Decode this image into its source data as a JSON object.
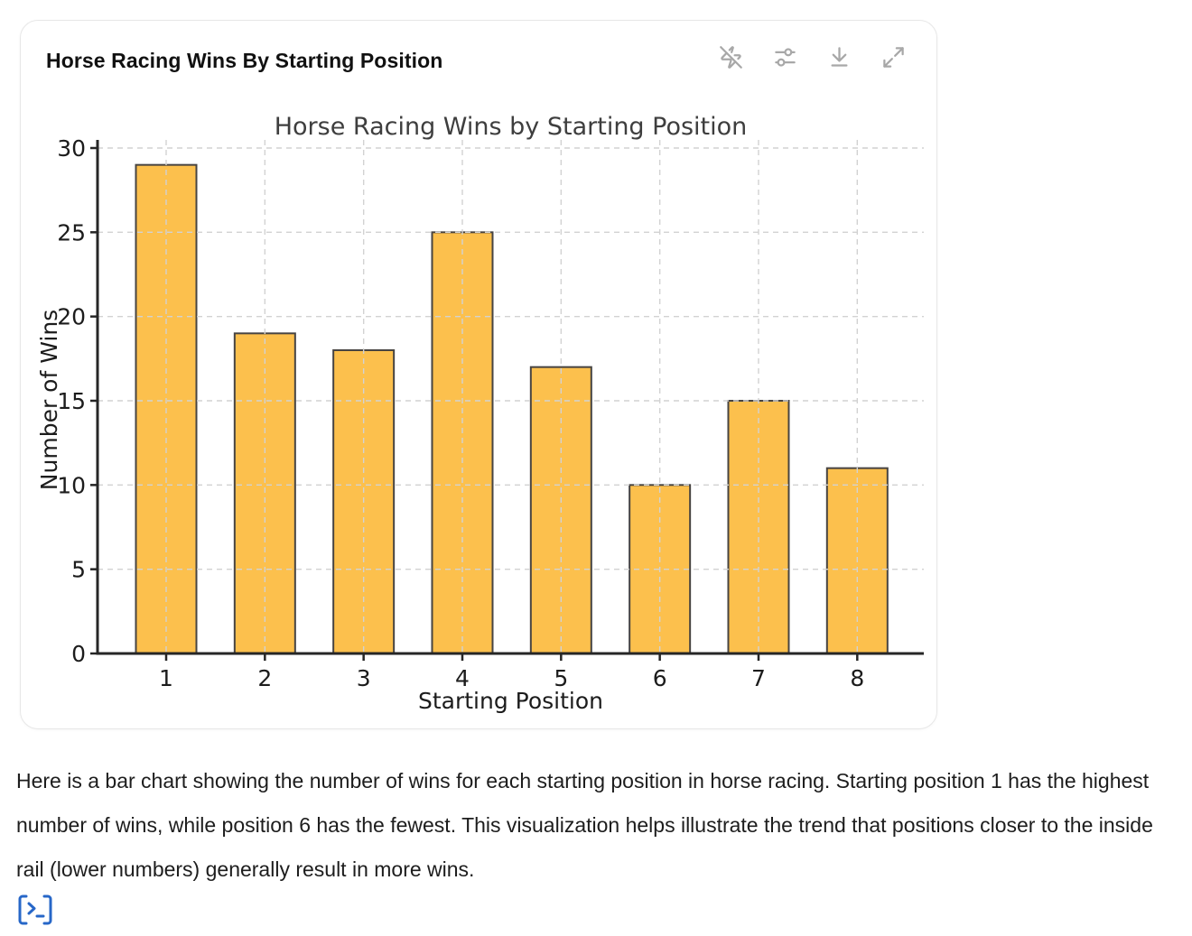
{
  "card": {
    "title": "Horse Racing Wins By Starting Position",
    "toolbar_icons": [
      "zap-off",
      "sliders",
      "download",
      "expand"
    ]
  },
  "chart_data": {
    "type": "bar",
    "title": "Horse Racing Wins by Starting Position",
    "xlabel": "Starting Position",
    "ylabel": "Number of Wins",
    "categories": [
      "1",
      "2",
      "3",
      "4",
      "5",
      "6",
      "7",
      "8"
    ],
    "values": [
      29,
      19,
      18,
      25,
      17,
      10,
      15,
      11
    ],
    "ylim": [
      0,
      30
    ],
    "yticks": [
      0,
      5,
      10,
      15,
      20,
      25,
      30
    ],
    "grid": true,
    "bar_color": "#FCC04D",
    "bar_edge_color": "#474442",
    "grid_color": "#d2d2d2",
    "axis_color": "#262626",
    "tick_label_color": "#1c1c1c",
    "title_color": "#3e3e3e"
  },
  "message": {
    "text": "Here is a bar chart showing the number of wins for each starting position in horse racing. Starting position 1 has the highest number of wins, while position 6 has the fewest. This visualization helps illustrate the trend that positions closer to the inside rail (lower numbers) generally result in more wins."
  },
  "footer": {
    "code_icon": "terminal",
    "accent_blue": "#2767c8"
  }
}
